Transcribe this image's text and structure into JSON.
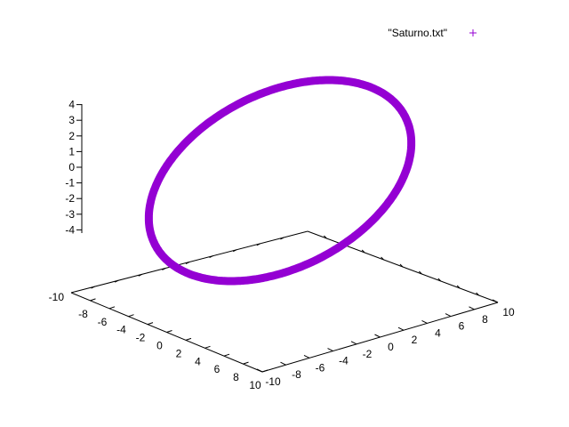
{
  "chart_data": {
    "type": "scatter3d",
    "title": "",
    "legend": {
      "label": "\"Saturno.txt\"",
      "marker": "+",
      "position": "top-right"
    },
    "series": [
      {
        "name": "\"Saturno.txt\"",
        "color": "#9400d3",
        "description": "Tilted elliptical orbit of points (radius ~9.5, inclined ~26 deg)",
        "orbit": {
          "radius": 9.5,
          "tilt_deg": 26.5,
          "points": 360
        }
      }
    ],
    "xaxis": {
      "range": [
        -10,
        10
      ],
      "ticks": [
        "-10",
        "-8",
        "-6",
        "-4",
        "-2",
        "0",
        "2",
        "4",
        "6",
        "8",
        "10"
      ]
    },
    "yaxis": {
      "range": [
        -10,
        10
      ],
      "ticks": [
        "-10",
        "-8",
        "-6",
        "-4",
        "-2",
        "0",
        "2",
        "4",
        "6",
        "8",
        "10"
      ]
    },
    "zaxis": {
      "range": [
        -5,
        5
      ],
      "ticks": [
        "4",
        "3",
        "2",
        "1",
        "0",
        "-1",
        "-2",
        "-3",
        "-4"
      ]
    },
    "grid": false
  }
}
